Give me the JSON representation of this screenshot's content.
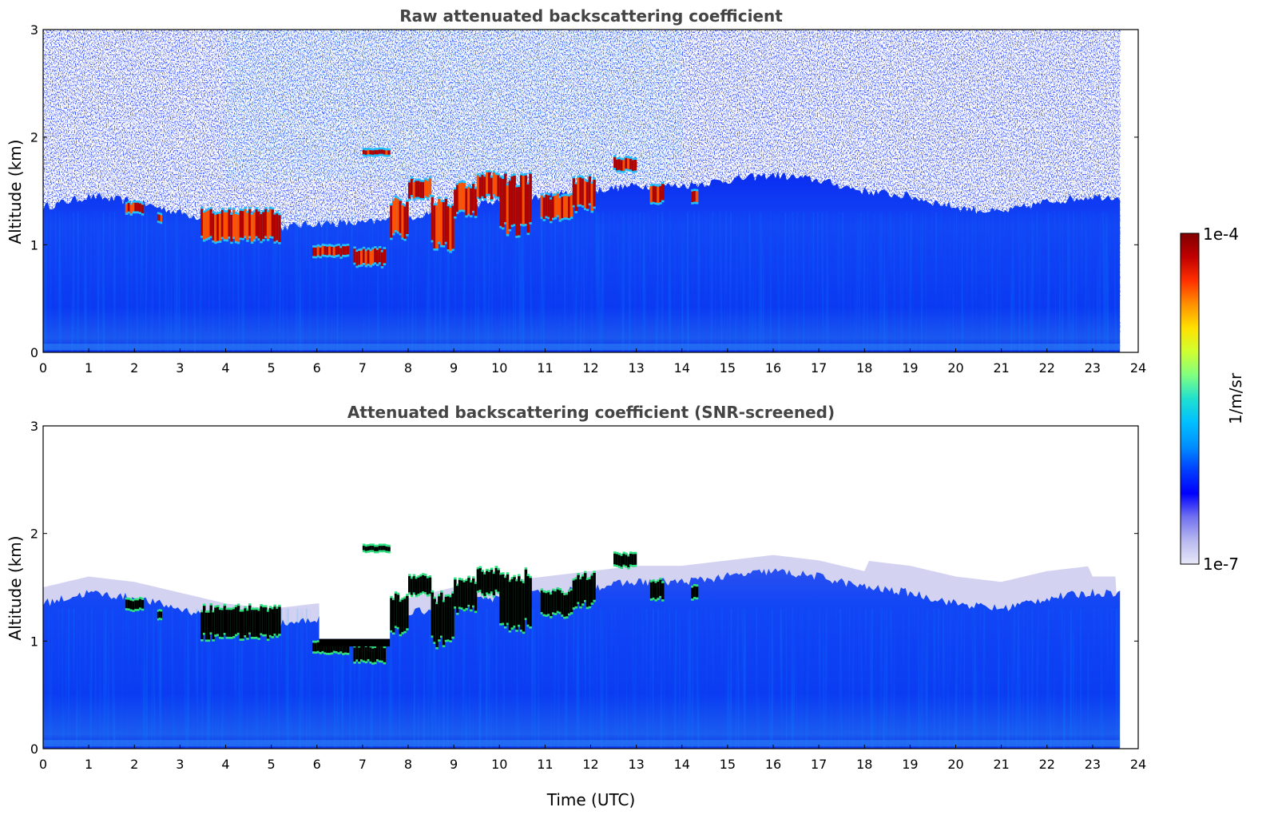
{
  "chart_data": [
    {
      "type": "heatmap",
      "title": "Raw attenuated backscattering coefficient",
      "xlabel": "",
      "ylabel": "Altitude (km)",
      "xlim": [
        0,
        24
      ],
      "ylim": [
        0,
        3
      ],
      "x_ticks": [
        "0",
        "1",
        "2",
        "3",
        "4",
        "5",
        "6",
        "7",
        "8",
        "9",
        "10",
        "11",
        "12",
        "13",
        "14",
        "15",
        "16",
        "17",
        "18",
        "19",
        "20",
        "21",
        "22",
        "23",
        "24"
      ],
      "y_ticks": [
        "0",
        "1",
        "2",
        "3"
      ],
      "data_end_time": 23.6,
      "boundary_layer_top_km": [
        [
          0,
          1.35
        ],
        [
          1,
          1.45
        ],
        [
          2,
          1.4
        ],
        [
          3,
          1.3
        ],
        [
          4,
          1.2
        ],
        [
          5,
          1.15
        ],
        [
          6,
          1.2
        ],
        [
          7,
          1.2
        ],
        [
          8,
          1.25
        ],
        [
          9,
          1.35
        ],
        [
          10,
          1.4
        ],
        [
          11,
          1.45
        ],
        [
          12,
          1.5
        ],
        [
          13,
          1.55
        ],
        [
          14,
          1.55
        ],
        [
          15,
          1.6
        ],
        [
          16,
          1.65
        ],
        [
          17,
          1.6
        ],
        [
          18,
          1.5
        ],
        [
          19,
          1.45
        ],
        [
          20,
          1.35
        ],
        [
          21,
          1.3
        ],
        [
          22,
          1.4
        ],
        [
          23,
          1.45
        ],
        [
          23.6,
          1.45
        ]
      ],
      "cloud_layers": [
        {
          "t0": 1.8,
          "t1": 2.2,
          "h0": 1.3,
          "h1": 1.38
        },
        {
          "t0": 2.5,
          "t1": 2.6,
          "h0": 1.22,
          "h1": 1.28
        },
        {
          "t0": 3.45,
          "t1": 5.2,
          "h0": 1.05,
          "h1": 1.3
        },
        {
          "t0": 5.9,
          "t1": 6.7,
          "h0": 0.9,
          "h1": 0.98
        },
        {
          "t0": 6.8,
          "t1": 7.5,
          "h0": 0.82,
          "h1": 0.95
        },
        {
          "t0": 7.0,
          "t1": 7.6,
          "h0": 1.84,
          "h1": 1.88
        },
        {
          "t0": 7.6,
          "t1": 8.0,
          "h0": 1.1,
          "h1": 1.4
        },
        {
          "t0": 8.0,
          "t1": 8.5,
          "h0": 1.45,
          "h1": 1.6
        },
        {
          "t0": 8.5,
          "t1": 9.0,
          "h0": 1.0,
          "h1": 1.4
        },
        {
          "t0": 9.0,
          "t1": 9.5,
          "h0": 1.3,
          "h1": 1.55
        },
        {
          "t0": 9.5,
          "t1": 10.0,
          "h0": 1.45,
          "h1": 1.65
        },
        {
          "t0": 10.0,
          "t1": 10.7,
          "h0": 1.15,
          "h1": 1.6
        },
        {
          "t0": 10.9,
          "t1": 11.6,
          "h0": 1.25,
          "h1": 1.45
        },
        {
          "t0": 11.6,
          "t1": 12.1,
          "h0": 1.35,
          "h1": 1.6
        },
        {
          "t0": 12.5,
          "t1": 13.0,
          "h0": 1.7,
          "h1": 1.8
        },
        {
          "t0": 13.3,
          "t1": 13.6,
          "h0": 1.4,
          "h1": 1.55
        },
        {
          "t0": 14.2,
          "t1": 14.35,
          "h0": 1.4,
          "h1": 1.5
        }
      ]
    },
    {
      "type": "heatmap",
      "title": "Attenuated backscattering coefficient (SNR-screened)",
      "xlabel": "Time (UTC)",
      "ylabel": "Altitude (km)",
      "xlim": [
        0,
        24
      ],
      "ylim": [
        0,
        3
      ],
      "x_ticks": [
        "0",
        "1",
        "2",
        "3",
        "4",
        "5",
        "6",
        "7",
        "8",
        "9",
        "10",
        "11",
        "12",
        "13",
        "14",
        "15",
        "16",
        "17",
        "18",
        "19",
        "20",
        "21",
        "22",
        "23",
        "24"
      ],
      "y_ticks": [
        "0",
        "1",
        "2",
        "3"
      ],
      "data_end_time": 23.6
    }
  ],
  "colorbar": {
    "label": "1/m/sr",
    "max_label": "1e-4",
    "min_label": "1e-7",
    "min_value": 1e-07,
    "max_value": 0.0001,
    "scale": "log",
    "colors": [
      "#e8e8f8",
      "#b8b8f0",
      "#7070f0",
      "#0000ff",
      "#0040ff",
      "#0090ff",
      "#00c0ff",
      "#20e0d0",
      "#80ff80",
      "#d0ff30",
      "#ffe000",
      "#ff9000",
      "#ff3000",
      "#c00000",
      "#800000"
    ]
  },
  "screened_cloud_color": "#000000"
}
